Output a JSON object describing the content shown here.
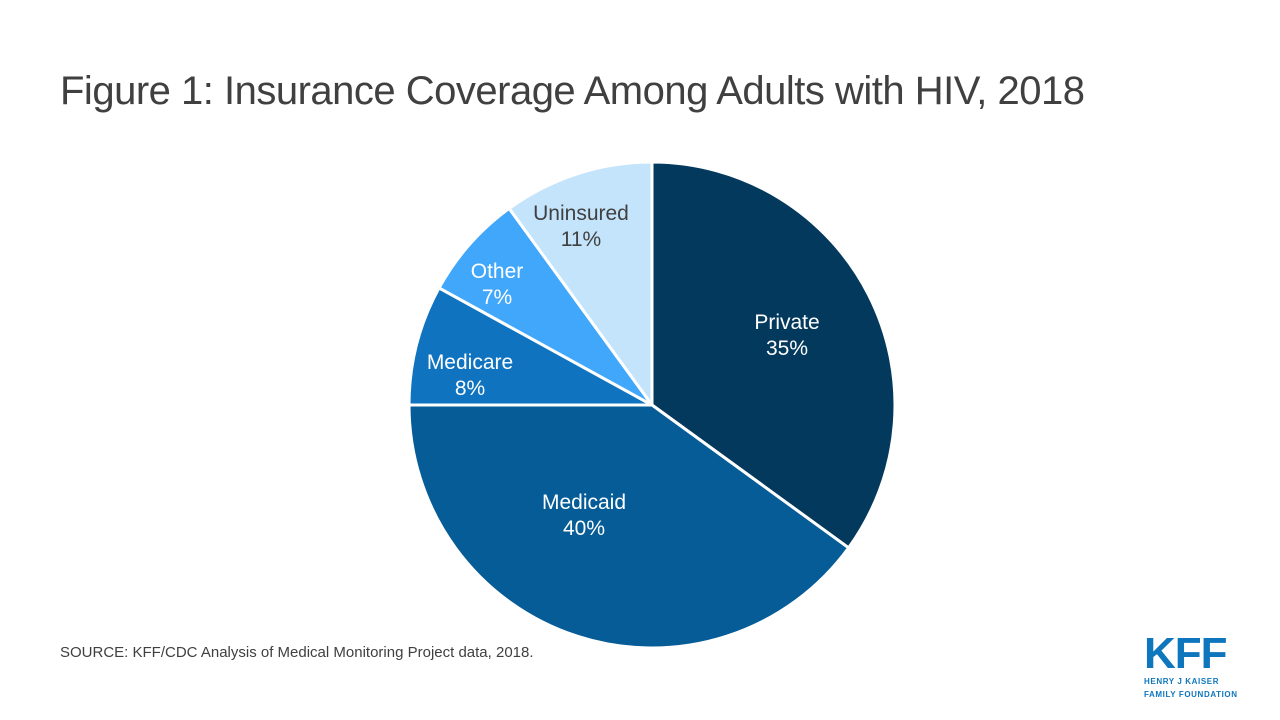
{
  "page": {
    "background": "#FFFFFF",
    "text_color": "#404040"
  },
  "header": {
    "title": "Figure 1: Insurance Coverage Among Adults with HIV, 2018"
  },
  "footer": {
    "source": "SOURCE: KFF/CDC Analysis of Medical Monitoring Project data, 2018.",
    "logo": {
      "acronym": "KFF",
      "line1": "HENRY J KAISER",
      "line2": "FAMILY FOUNDATION",
      "color": "#0E76BD"
    }
  },
  "chart_data": {
    "type": "pie",
    "title": "Figure 1: Insurance Coverage Among Adults with HIV, 2018",
    "start_angle_deg": 0,
    "direction": "clockwise",
    "separator_color": "#FFFFFF",
    "legend_position": "labels-on-slices",
    "slices": [
      {
        "name": "Private",
        "value": 35,
        "pct_label": "35%",
        "color": "#04395E",
        "label_color": "#FFFFFF"
      },
      {
        "name": "Medicaid",
        "value": 40,
        "pct_label": "40%",
        "color": "#065C97",
        "label_color": "#FFFFFF"
      },
      {
        "name": "Medicare",
        "value": 8,
        "pct_label": "8%",
        "color": "#0F73C0",
        "label_color": "#FFFFFF"
      },
      {
        "name": "Other",
        "value": 7,
        "pct_label": "7%",
        "color": "#41A7FB",
        "label_color": "#FFFFFF"
      },
      {
        "name": "Uninsured",
        "value": 11,
        "pct_label": "11%",
        "color": "#C4E4FB",
        "label_color": "#404040"
      }
    ]
  }
}
